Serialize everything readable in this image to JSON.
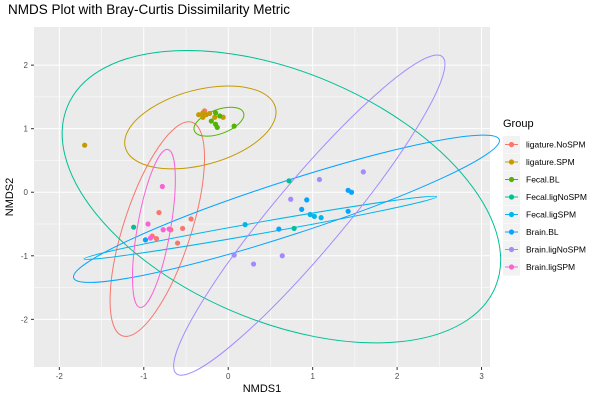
{
  "chart_data": {
    "type": "scatter",
    "title": "NMDS Plot with Bray-Curtis Dissimilarity Metric",
    "xlabel": "NMDS1",
    "ylabel": "NMDS2",
    "xlim": [
      -2.3,
      3.1
    ],
    "ylim": [
      -2.75,
      2.6
    ],
    "x_ticks": [
      -2,
      -1,
      0,
      1,
      2,
      3
    ],
    "y_ticks": [
      -2,
      -1,
      0,
      1,
      2
    ],
    "grid": true,
    "legend": {
      "title": "Group",
      "position": "right"
    },
    "series": [
      {
        "name": "ligature.NoSPM",
        "color": "#F8766D",
        "points": [
          [
            -0.82,
            -0.32
          ],
          [
            -0.68,
            -0.59
          ],
          [
            -0.6,
            -0.8
          ],
          [
            -0.54,
            -0.57
          ],
          [
            -0.44,
            -0.42
          ],
          [
            -0.28,
            1.28
          ],
          [
            -0.85,
            -0.73
          ],
          [
            -0.9,
            -0.69
          ]
        ],
        "ellipse": {
          "cx": -0.84,
          "cy": -0.58,
          "rx": 1.33,
          "ry": 0.53,
          "angle": 72
        }
      },
      {
        "name": "ligature.SPM",
        "color": "#C49A00",
        "points": [
          [
            -1.7,
            0.74
          ],
          [
            -0.35,
            1.22
          ],
          [
            -0.3,
            1.18
          ],
          [
            -0.26,
            1.22
          ],
          [
            -0.22,
            1.24
          ],
          [
            -0.16,
            1.18
          ],
          [
            -0.06,
            1.18
          ],
          [
            -0.3,
            1.25
          ]
        ],
        "ellipse": {
          "cx": -0.33,
          "cy": 1.02,
          "rx": 0.92,
          "ry": 0.59,
          "angle": 15
        }
      },
      {
        "name": "Fecal.BL",
        "color": "#53B400",
        "points": [
          [
            -0.2,
            1.12
          ],
          [
            -0.15,
            1.07
          ],
          [
            -0.1,
            1.2
          ],
          [
            -0.15,
            1.25
          ],
          [
            0.07,
            1.04
          ],
          [
            -0.13,
            1.02
          ]
        ],
        "ellipse": {
          "cx": -0.11,
          "cy": 1.11,
          "rx": 0.31,
          "ry": 0.19,
          "angle": 20
        }
      },
      {
        "name": "Fecal.ligNoSPM",
        "color": "#00C094",
        "points": [
          [
            -1.12,
            -0.55
          ],
          [
            0.72,
            0.18
          ],
          [
            0.78,
            -0.57
          ]
        ],
        "ellipse": {
          "cx": 0.63,
          "cy": -0.07,
          "rx": 2.75,
          "ry": 1.96,
          "angle": -23
        }
      },
      {
        "name": "Fecal.ligSPM",
        "color": "#00B6EB",
        "points": [
          [
            0.2,
            -0.51
          ],
          [
            0.97,
            -0.35
          ],
          [
            1.02,
            -0.38
          ],
          [
            1.1,
            -0.4
          ]
        ],
        "ellipse": {
          "cx": 0.38,
          "cy": -0.56,
          "rx": 2.12,
          "ry": 0.09,
          "angle": 10
        }
      },
      {
        "name": "Brain.BL",
        "color": "#06A4FF",
        "points": [
          [
            -0.98,
            -0.75
          ],
          [
            0.6,
            -0.58
          ],
          [
            0.87,
            -0.27
          ],
          [
            0.93,
            -0.12
          ],
          [
            1.42,
            -0.3
          ],
          [
            1.42,
            0.03
          ],
          [
            1.46,
            0.0
          ]
        ],
        "ellipse": {
          "cx": 0.69,
          "cy": -0.26,
          "rx": 2.65,
          "ry": 0.42,
          "angle": 18
        }
      },
      {
        "name": "Brain.ligNoSPM",
        "color": "#A58AFF",
        "points": [
          [
            0.07,
            -0.99
          ],
          [
            0.3,
            -1.13
          ],
          [
            0.64,
            -1.0
          ],
          [
            0.74,
            -0.11
          ],
          [
            1.08,
            0.2
          ],
          [
            1.6,
            0.32
          ]
        ],
        "ellipse": {
          "cx": 0.96,
          "cy": -0.36,
          "rx": 2.45,
          "ry": 0.55,
          "angle": 50
        }
      },
      {
        "name": "Brain.ligSPM",
        "color": "#FB61D7",
        "points": [
          [
            -0.95,
            -0.5
          ],
          [
            -0.92,
            -0.72
          ],
          [
            -0.78,
            0.09
          ],
          [
            -0.77,
            -0.59
          ],
          [
            -0.7,
            -0.58
          ]
        ],
        "ellipse": {
          "cx": -0.88,
          "cy": -0.57,
          "rx": 0.95,
          "ry": 0.26,
          "angle": 80
        }
      }
    ]
  }
}
